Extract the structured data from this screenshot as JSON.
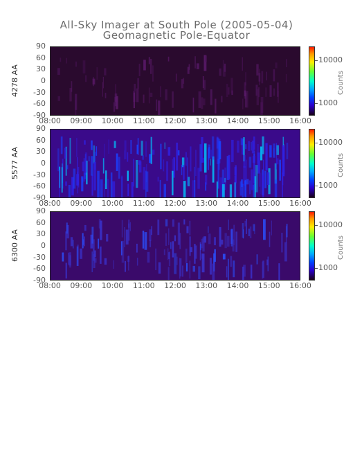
{
  "title": "All-Sky Imager at South Pole (2005-05-04)",
  "subtitle": "Geomagnetic Pole-Equator",
  "chart_data": {
    "type": "heatmap",
    "x_ticks": [
      "08:00",
      "09:00",
      "10:00",
      "11:00",
      "12:00",
      "13:00",
      "14:00",
      "15:00",
      "16:00"
    ],
    "y_ticks": [
      "90",
      "60",
      "30",
      "0",
      "-30",
      "-60",
      "-90"
    ],
    "ylim": [
      -90,
      90
    ],
    "xlim": [
      "08:00",
      "16:00"
    ],
    "colorbar": {
      "label": "Counts",
      "ticks": [
        "10000",
        "1000"
      ],
      "scale": "log"
    },
    "panels": [
      {
        "ylabel": "4278 AA",
        "base_color": "#2a0a2e",
        "intensity": 0.25
      },
      {
        "ylabel": "5577 AA",
        "base_color": "#3a0a8a",
        "intensity": 1.0
      },
      {
        "ylabel": "6300 AA",
        "base_color": "#3a0a6a",
        "intensity": 0.55
      }
    ]
  }
}
